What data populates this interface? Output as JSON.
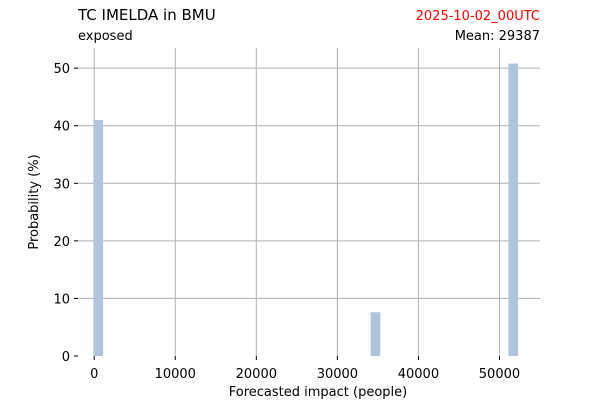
{
  "header": {
    "title": "TC IMELDA in BMU",
    "subtitle": "exposed",
    "timestamp": "2025-10-02_00UTC",
    "mean_label": "Mean: 29387"
  },
  "colors": {
    "bar": "#b0c4de",
    "grid": "#b0b0b0",
    "timestamp": "#ff0000",
    "text": "#000000"
  },
  "chart_data": {
    "type": "bar",
    "title": "TC IMELDA in BMU",
    "xlabel": "Forecasted impact (people)",
    "ylabel": "Probability (%)",
    "xlim": [
      -2000,
      55000
    ],
    "ylim": [
      0,
      53.5
    ],
    "xticks": [
      0,
      10000,
      20000,
      30000,
      40000,
      50000
    ],
    "yticks": [
      0,
      10,
      20,
      30,
      40,
      50
    ],
    "grid": true,
    "bar_width": 1200,
    "bars": [
      {
        "x": 500,
        "value": 41.0
      },
      {
        "x": 34700,
        "value": 7.6
      },
      {
        "x": 51700,
        "value": 50.8
      }
    ]
  }
}
